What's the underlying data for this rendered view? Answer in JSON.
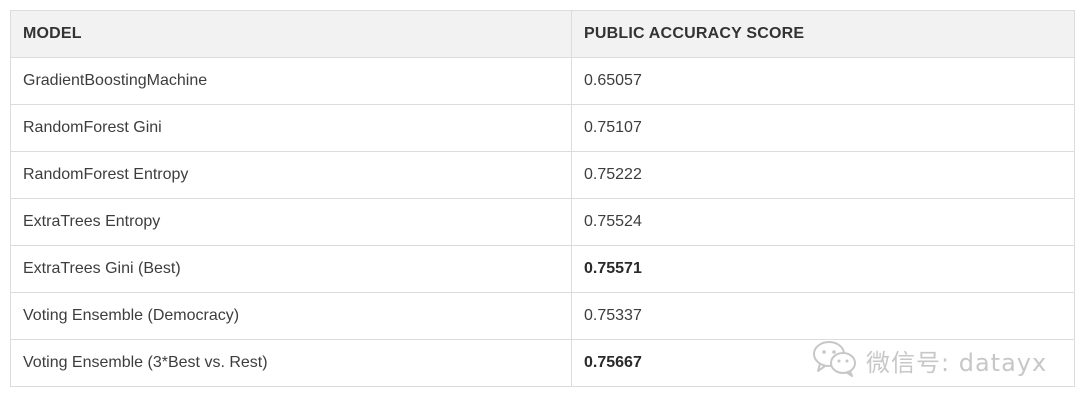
{
  "table": {
    "headers": {
      "model": "MODEL",
      "score": "PUBLIC ACCURACY SCORE"
    },
    "rows": [
      {
        "model": "GradientBoostingMachine",
        "score": "0.65057",
        "bold": false
      },
      {
        "model": "RandomForest Gini",
        "score": "0.75107",
        "bold": false
      },
      {
        "model": "RandomForest Entropy",
        "score": "0.75222",
        "bold": false
      },
      {
        "model": "ExtraTrees Entropy",
        "score": "0.75524",
        "bold": false
      },
      {
        "model": "ExtraTrees Gini (Best)",
        "score": "0.75571",
        "bold": true
      },
      {
        "model": "Voting Ensemble (Democracy)",
        "score": "0.75337",
        "bold": false
      },
      {
        "model": "Voting Ensemble (3*Best vs. Rest)",
        "score": "0.75667",
        "bold": true
      }
    ]
  },
  "watermark": {
    "icon": "wechat-icon",
    "text": "微信号: datayx"
  }
}
